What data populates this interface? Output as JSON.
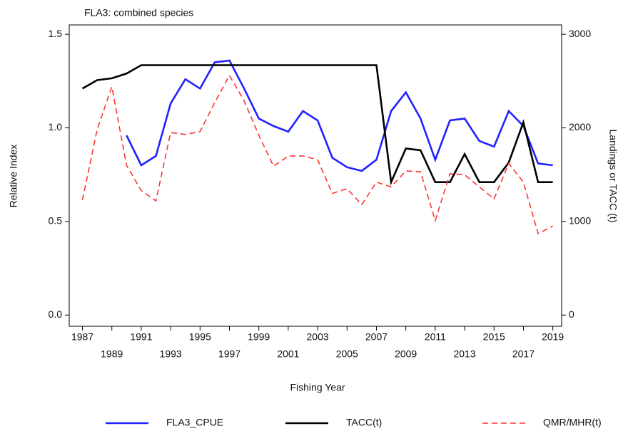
{
  "chart_data": {
    "type": "line",
    "title": "FLA3: combined species",
    "xlabel": "Fishing Year",
    "ylabel": "Relative Index",
    "y2label": "Landings or TACC (t)",
    "x": [
      1987,
      1988,
      1989,
      1990,
      1991,
      1992,
      1993,
      1994,
      1995,
      1996,
      1997,
      1998,
      1999,
      2000,
      2001,
      2002,
      2003,
      2004,
      2005,
      2006,
      2007,
      2008,
      2009,
      2010,
      2011,
      2012,
      2013,
      2014,
      2015,
      2016,
      2017,
      2018,
      2019
    ],
    "series": [
      {
        "name": "FLA3_CPUE",
        "color": "#2222ff",
        "style": "solid",
        "axis": "y",
        "values": [
          null,
          null,
          null,
          0.96,
          0.8,
          0.85,
          1.13,
          1.26,
          1.21,
          1.35,
          1.36,
          1.21,
          1.05,
          1.01,
          0.98,
          1.09,
          1.04,
          0.84,
          0.79,
          0.77,
          0.83,
          1.09,
          1.19,
          1.05,
          0.83,
          1.04,
          1.05,
          0.93,
          0.9,
          1.09,
          1.01,
          0.81,
          0.8
        ]
      },
      {
        "name": "TACC(t)",
        "color": "#000000",
        "style": "solid",
        "axis": "y2",
        "values": [
          2420,
          2510,
          2530,
          2580,
          2670,
          2670,
          2670,
          2670,
          2670,
          2670,
          2670,
          2670,
          2670,
          2670,
          2670,
          2670,
          2670,
          2670,
          2670,
          2670,
          2670,
          1420,
          1780,
          1760,
          1420,
          1420,
          1720,
          1420,
          1420,
          1630,
          2060,
          1420,
          1420
        ]
      },
      {
        "name": "QMR/MHR(t)",
        "color": "#ff3333",
        "style": "dashed",
        "axis": "y2",
        "values": [
          1230,
          1980,
          2440,
          1600,
          1330,
          1220,
          1950,
          1930,
          1960,
          2270,
          2560,
          2290,
          1920,
          1590,
          1700,
          1700,
          1660,
          1300,
          1350,
          1180,
          1420,
          1370,
          1540,
          1530,
          1010,
          1510,
          1500,
          1370,
          1240,
          1620,
          1420,
          870,
          950
        ]
      }
    ],
    "xlim": [
      1986.1,
      2019.6
    ],
    "xticks": [
      1987,
      1989,
      1991,
      1993,
      1995,
      1997,
      1999,
      2001,
      2003,
      2005,
      2007,
      2009,
      2011,
      2013,
      2015,
      2017,
      2019
    ],
    "ylim": [
      -0.06,
      1.55
    ],
    "yticks": [
      {
        "value": 0,
        "label": "0.0"
      },
      0.5,
      {
        "value": 1,
        "label": "1.0"
      },
      1.5
    ],
    "y2lim": [
      -120,
      3100
    ],
    "y2ticks": [
      0,
      1000,
      2000,
      3000
    ],
    "grid": false
  }
}
